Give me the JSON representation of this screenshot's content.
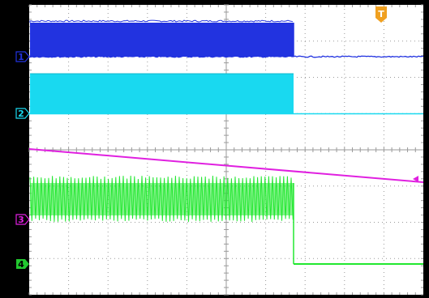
{
  "colors": {
    "frame": "#000000",
    "screen_background": "#ffffff",
    "grid": "#9a9a9a",
    "channel_1": "#2233e0",
    "channel_2": "#19d9f0",
    "channel_3": "#e020e0",
    "channel_4": "#22e830",
    "trigger_marker": "#f0a020"
  },
  "channels": [
    {
      "id": "ch1",
      "label": "1",
      "color": "#2233e0",
      "marker_style": "outline",
      "waveform": "burst-then-flat"
    },
    {
      "id": "ch2",
      "label": "2",
      "color": "#19d9f0",
      "marker_style": "outline",
      "waveform": "burst-then-flat"
    },
    {
      "id": "ch3",
      "label": "3",
      "color": "#e020e0",
      "marker_style": "outline",
      "waveform": "decreasing-ramp"
    },
    {
      "id": "ch4",
      "label": "4",
      "color": "#22e830",
      "marker_style": "filled",
      "waveform": "oscillation-then-step-down"
    }
  ],
  "trigger": {
    "label": "T",
    "icon": "trigger-position-icon"
  },
  "icons": {
    "ch1_marker": "channel-1-ground-marker-icon",
    "ch2_marker": "channel-2-ground-marker-icon",
    "ch3_marker": "channel-3-ground-marker-icon",
    "ch4_marker": "channel-4-ground-marker-icon",
    "trigger_level": "trigger-level-arrow-icon"
  }
}
